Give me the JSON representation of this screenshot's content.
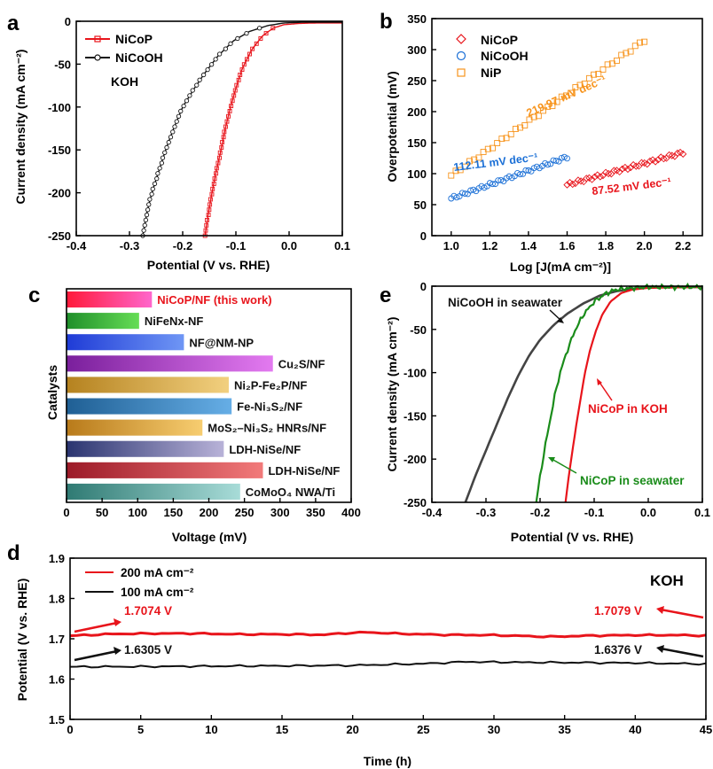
{
  "panels": {
    "a": {
      "letter": "a",
      "xlabel": "Potential (V vs. RHE)",
      "ylabel": "Current density (mA cm⁻²)",
      "annotation": "KOH"
    },
    "b": {
      "letter": "b",
      "xlabel": "Log [J(mA cm⁻²)]",
      "ylabel": "Overpotential (mV)"
    },
    "c": {
      "letter": "c",
      "xlabel": "Voltage (mV)",
      "ylabel": "Catalysts"
    },
    "d": {
      "letter": "d",
      "xlabel": "Time (h)",
      "ylabel": "Potential (V vs. RHE)",
      "annotation": "KOH"
    },
    "e": {
      "letter": "e",
      "xlabel": "Potential (V vs. RHE)",
      "ylabel": "Current density (mA cm⁻²)"
    }
  },
  "colors": {
    "red": "#e8141b",
    "black": "#111111",
    "orange": "#f7941d",
    "blue": "#1a6fd6",
    "green": "#1a8c1a",
    "gray": "#444444"
  },
  "chart_data": [
    {
      "panel": "a",
      "type": "line",
      "xlabel": "Potential (V vs. RHE)",
      "ylabel": "Current density (mA cm⁻²)",
      "xlim": [
        -0.4,
        0.1
      ],
      "ylim": [
        -250,
        0
      ],
      "xticks": [
        "-0.4",
        "-0.3",
        "-0.2",
        "-0.1",
        "0.0",
        "0.1"
      ],
      "yticks": [
        "0",
        "-50",
        "-100",
        "-150",
        "-200",
        "-250"
      ],
      "legend": "top-left",
      "series": [
        {
          "name": "NiCoP",
          "color": "#e8141b",
          "marker": "square",
          "points": [
            [
              -0.158,
              -250
            ],
            [
              -0.152,
              -225
            ],
            [
              -0.145,
              -200
            ],
            [
              -0.137,
              -175
            ],
            [
              -0.128,
              -150
            ],
            [
              -0.12,
              -125
            ],
            [
              -0.11,
              -100
            ],
            [
              -0.1,
              -78
            ],
            [
              -0.088,
              -55
            ],
            [
              -0.07,
              -33
            ],
            [
              -0.05,
              -17
            ],
            [
              -0.03,
              -8
            ],
            [
              -0.01,
              -4
            ],
            [
              0.02,
              -2.5
            ],
            [
              0.05,
              -2
            ],
            [
              0.1,
              -2
            ]
          ]
        },
        {
          "name": "NiCoOH",
          "color": "#111111",
          "marker": "circle",
          "points": [
            [
              -0.275,
              -250
            ],
            [
              -0.268,
              -225
            ],
            [
              -0.258,
              -200
            ],
            [
              -0.245,
              -175
            ],
            [
              -0.232,
              -150
            ],
            [
              -0.217,
              -125
            ],
            [
              -0.2,
              -100
            ],
            [
              -0.18,
              -80
            ],
            [
              -0.158,
              -60
            ],
            [
              -0.133,
              -40
            ],
            [
              -0.105,
              -23
            ],
            [
              -0.075,
              -12
            ],
            [
              -0.04,
              -5
            ],
            [
              -0.01,
              -2
            ],
            [
              0.03,
              -1
            ],
            [
              0.1,
              -1
            ]
          ]
        }
      ]
    },
    {
      "panel": "b",
      "type": "scatter",
      "xlabel": "Log [J(mA cm⁻²)]",
      "ylabel": "Overpotential (mV)",
      "xlim": [
        0.9,
        2.3
      ],
      "ylim": [
        0,
        350
      ],
      "xticks": [
        "1.0",
        "1.2",
        "1.4",
        "1.6",
        "1.8",
        "2.0",
        "2.2"
      ],
      "yticks": [
        "0",
        "50",
        "100",
        "150",
        "200",
        "250",
        "300",
        "350"
      ],
      "legend": "top-left",
      "series": [
        {
          "name": "NiCoP",
          "color": "#e8141b",
          "marker": "diamond",
          "x_range": [
            1.6,
            2.2
          ],
          "y_range": [
            82,
            134
          ],
          "slope_label": "87.52 mV dec⁻¹"
        },
        {
          "name": "NiCoOH",
          "color": "#1a6fd6",
          "marker": "circle",
          "x_range": [
            1.0,
            1.6
          ],
          "y_range": [
            60,
            127
          ],
          "slope_label": "112.11 mV dec⁻¹"
        },
        {
          "name": "NiP",
          "color": "#f7941d",
          "marker": "square",
          "x_range": [
            1.0,
            2.0
          ],
          "y_range": [
            97,
            315
          ],
          "slope_label": "219.97 mV dec⁻¹"
        }
      ]
    },
    {
      "panel": "c",
      "type": "bar",
      "orientation": "horizontal",
      "xlabel": "Voltage (mV)",
      "ylabel": "Catalysts",
      "xlim": [
        0,
        400
      ],
      "xticks": [
        "0",
        "50",
        "100",
        "150",
        "200",
        "250",
        "300",
        "350",
        "400"
      ],
      "bars": [
        {
          "label": "NiCoP/NF (this work)",
          "value": 120,
          "c1": "#ff1a3a",
          "c2": "#ff66cc",
          "label_color": "#e8141b"
        },
        {
          "label": "NiFeNx-NF",
          "value": 102,
          "c1": "#1f8f2a",
          "c2": "#66dd55",
          "label_color": "#111111"
        },
        {
          "label": "NF@NM-NP",
          "value": 165,
          "c1": "#1f3bd6",
          "c2": "#6f96f5",
          "label_color": "#111111"
        },
        {
          "label": "Cu₂S/NF",
          "value": 290,
          "c1": "#7a1f9c",
          "c2": "#e37af0",
          "label_color": "#111111"
        },
        {
          "label": "Ni₂P-Fe₂P/NF",
          "value": 228,
          "c1": "#b5821f",
          "c2": "#f2d07f",
          "label_color": "#111111"
        },
        {
          "label": "Fe-Ni₃S₂/NF",
          "value": 232,
          "c1": "#1f5f94",
          "c2": "#66aee6",
          "label_color": "#111111"
        },
        {
          "label": "MoS₂–Ni₃S₂ HNRs/NF",
          "value": 191,
          "c1": "#b87a1a",
          "c2": "#f7cd70",
          "label_color": "#111111"
        },
        {
          "label": "LDH-NiSe/NF",
          "value": 221,
          "c1": "#2a3470",
          "c2": "#b8b2d8",
          "label_color": "#111111"
        },
        {
          "label": "LDH-NiSe/NF",
          "value": 276,
          "c1": "#9c1a28",
          "c2": "#f27a7a",
          "label_color": "#111111"
        },
        {
          "label": "CoMoO₄ NWA/Ti",
          "value": 244,
          "c1": "#2f7a73",
          "c2": "#a8dcd8",
          "label_color": "#111111"
        }
      ]
    },
    {
      "panel": "e",
      "type": "line",
      "xlabel": "Potential (V vs. RHE)",
      "ylabel": "Current density (mA cm⁻²)",
      "xlim": [
        -0.4,
        0.1
      ],
      "ylim": [
        -250,
        0
      ],
      "xticks": [
        "-0.4",
        "-0.3",
        "-0.2",
        "-0.1",
        "0.0",
        "0.1"
      ],
      "yticks": [
        "0",
        "-50",
        "-100",
        "-150",
        "-200",
        "-250"
      ],
      "series": [
        {
          "name": "NiCoOH in seawater",
          "color": "#444444",
          "points": [
            [
              -0.338,
              -250
            ],
            [
              -0.32,
              -220
            ],
            [
              -0.3,
              -190
            ],
            [
              -0.28,
              -160
            ],
            [
              -0.26,
              -130
            ],
            [
              -0.24,
              -103
            ],
            [
              -0.22,
              -80
            ],
            [
              -0.2,
              -62
            ],
            [
              -0.175,
              -45
            ],
            [
              -0.15,
              -32
            ],
            [
              -0.12,
              -20
            ],
            [
              -0.09,
              -11
            ],
            [
              -0.06,
              -6
            ],
            [
              -0.03,
              -3
            ],
            [
              0.0,
              -1.5
            ],
            [
              0.05,
              -1
            ],
            [
              0.1,
              -1
            ]
          ]
        },
        {
          "name": "NiCoP in KOH",
          "color": "#e8141b",
          "points": [
            [
              -0.153,
              -250
            ],
            [
              -0.147,
              -220
            ],
            [
              -0.14,
              -190
            ],
            [
              -0.133,
              -160
            ],
            [
              -0.125,
              -130
            ],
            [
              -0.117,
              -100
            ],
            [
              -0.108,
              -75
            ],
            [
              -0.097,
              -52
            ],
            [
              -0.085,
              -33
            ],
            [
              -0.07,
              -18
            ],
            [
              -0.05,
              -8
            ],
            [
              -0.03,
              -4
            ],
            [
              0.0,
              -2
            ],
            [
              0.05,
              -1.5
            ],
            [
              0.1,
              -1
            ]
          ]
        },
        {
          "name": "NiCoP in seawater",
          "color": "#1a8c1a",
          "points": [
            [
              -0.207,
              -250
            ],
            [
              -0.2,
              -220
            ],
            [
              -0.192,
              -190
            ],
            [
              -0.183,
              -160
            ],
            [
              -0.174,
              -130
            ],
            [
              -0.163,
              -100
            ],
            [
              -0.15,
              -75
            ],
            [
              -0.136,
              -52
            ],
            [
              -0.12,
              -33
            ],
            [
              -0.1,
              -18
            ],
            [
              -0.08,
              -9
            ],
            [
              -0.06,
              -4
            ],
            [
              -0.03,
              -2
            ],
            [
              0.0,
              -1
            ],
            [
              0.1,
              -1
            ]
          ]
        }
      ],
      "annotations": [
        "NiCoOH in seawater",
        "NiCoP in KOH",
        "NiCoP in seawater"
      ]
    },
    {
      "panel": "d",
      "type": "line",
      "xlabel": "Time (h)",
      "ylabel": "Potential (V vs. RHE)",
      "xlim": [
        0,
        45
      ],
      "ylim": [
        1.5,
        1.9
      ],
      "xticks": [
        "0",
        "5",
        "10",
        "15",
        "20",
        "25",
        "30",
        "35",
        "40",
        "45"
      ],
      "yticks": [
        "1.5",
        "1.6",
        "1.7",
        "1.8",
        "1.9"
      ],
      "legend": "top-left",
      "series": [
        {
          "name": "200 mA cm⁻²",
          "color": "#e8141b",
          "points": [
            [
              0,
              1.7074
            ],
            [
              3,
              1.712
            ],
            [
              6,
              1.713
            ],
            [
              9,
              1.713
            ],
            [
              12,
              1.711
            ],
            [
              15,
              1.711
            ],
            [
              18,
              1.71
            ],
            [
              19.5,
              1.714
            ],
            [
              21,
              1.716
            ],
            [
              23,
              1.713
            ],
            [
              26,
              1.71
            ],
            [
              30,
              1.709
            ],
            [
              34,
              1.705
            ],
            [
              37,
              1.708
            ],
            [
              40,
              1.709
            ],
            [
              43,
              1.709
            ],
            [
              45,
              1.7079
            ]
          ]
        },
        {
          "name": "100 mA cm⁻²",
          "color": "#111111",
          "points": [
            [
              0,
              1.6305
            ],
            [
              5,
              1.631
            ],
            [
              10,
              1.632
            ],
            [
              15,
              1.633
            ],
            [
              20,
              1.634
            ],
            [
              25,
              1.638
            ],
            [
              28,
              1.643
            ],
            [
              30,
              1.642
            ],
            [
              35,
              1.641
            ],
            [
              40,
              1.64
            ],
            [
              45,
              1.6376
            ]
          ]
        }
      ],
      "annotations": [
        "1.7074 V",
        "1.6305 V",
        "1.7079 V",
        "1.6376 V"
      ]
    }
  ]
}
